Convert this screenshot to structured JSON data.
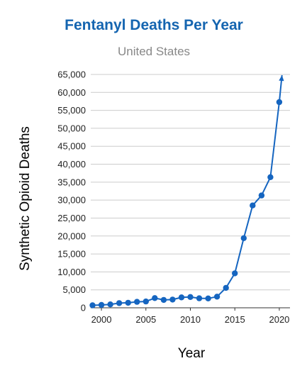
{
  "chart_data": {
    "type": "line",
    "title": "Fentanyl Deaths Per Year",
    "subtitle": "United States",
    "xlabel": "Year",
    "ylabel": "Synthetic Opioid Deaths",
    "xlim": [
      1998.8,
      2021.2
    ],
    "ylim": [
      0,
      65000
    ],
    "xticks": [
      "2000",
      "2005",
      "2010",
      "2015",
      "2020"
    ],
    "yticks": [
      "0",
      "5,000",
      "10,000",
      "15,000",
      "20,000",
      "25,000",
      "30,000",
      "35,000",
      "40,000",
      "45,000",
      "50,000",
      "55,000",
      "60,000",
      "65,000"
    ],
    "grid": true,
    "legend": "none",
    "series": [
      {
        "x": [
          1999,
          2000,
          2001,
          2002,
          2003,
          2004,
          2005,
          2006,
          2007,
          2008,
          2009,
          2010,
          2011,
          2012,
          2013,
          2014,
          2015,
          2016,
          2017,
          2018,
          2019,
          2020
        ],
        "y": [
          700,
          800,
          950,
          1300,
          1400,
          1650,
          1750,
          2700,
          2200,
          2300,
          2900,
          3000,
          2650,
          2600,
          3100,
          5550,
          9600,
          19400,
          28500,
          31300,
          36400,
          57300
        ],
        "end_arrow": {
          "x": 2020.3,
          "y": 64800
        }
      }
    ],
    "colors": {
      "title": "#1565b0",
      "subtitle": "#888888",
      "line": "#1565c0",
      "grid": "#cccccc"
    }
  }
}
